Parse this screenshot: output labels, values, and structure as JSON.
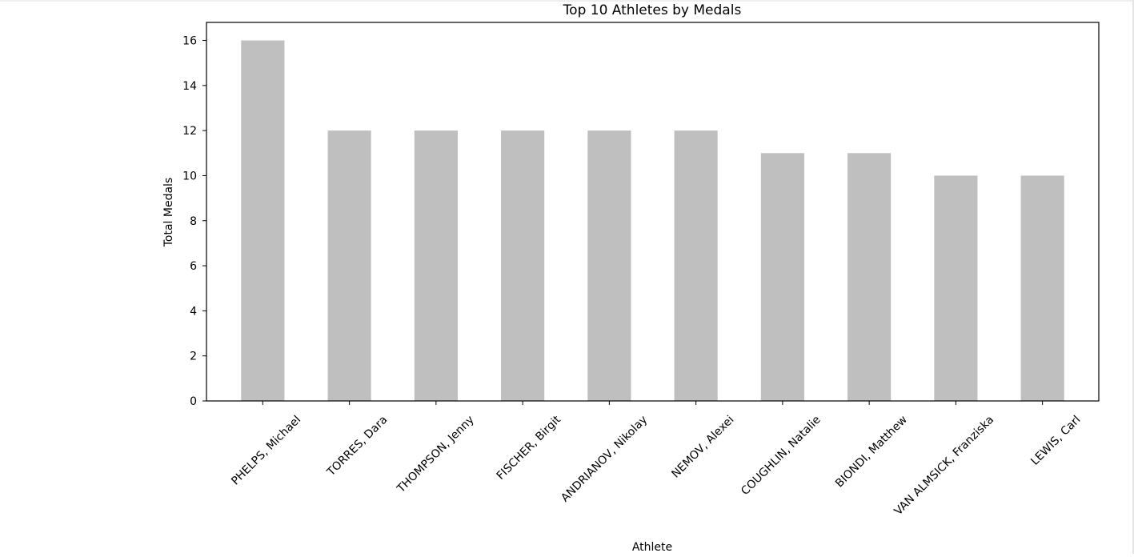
{
  "chart_data": {
    "type": "bar",
    "title": "Top 10 Athletes by Medals",
    "xlabel": "Athlete",
    "ylabel": "Total Medals",
    "categories": [
      "PHELPS, Michael",
      "TORRES, Dara",
      "THOMPSON, Jenny",
      "FISCHER, Birgit",
      "ANDRIANOV, Nikolay",
      "NEMOV, Alexei",
      "COUGHLIN, Natalie",
      "BIONDI, Matthew",
      "VAN ALMSICK, Franziska",
      "LEWIS, Carl"
    ],
    "values": [
      16,
      12,
      12,
      12,
      12,
      12,
      11,
      11,
      10,
      10
    ],
    "ylim": [
      0,
      16.8
    ],
    "yticks": [
      0,
      2,
      4,
      6,
      8,
      10,
      12,
      14,
      16
    ],
    "grid": false,
    "bar_color": "#bfbfbf"
  }
}
